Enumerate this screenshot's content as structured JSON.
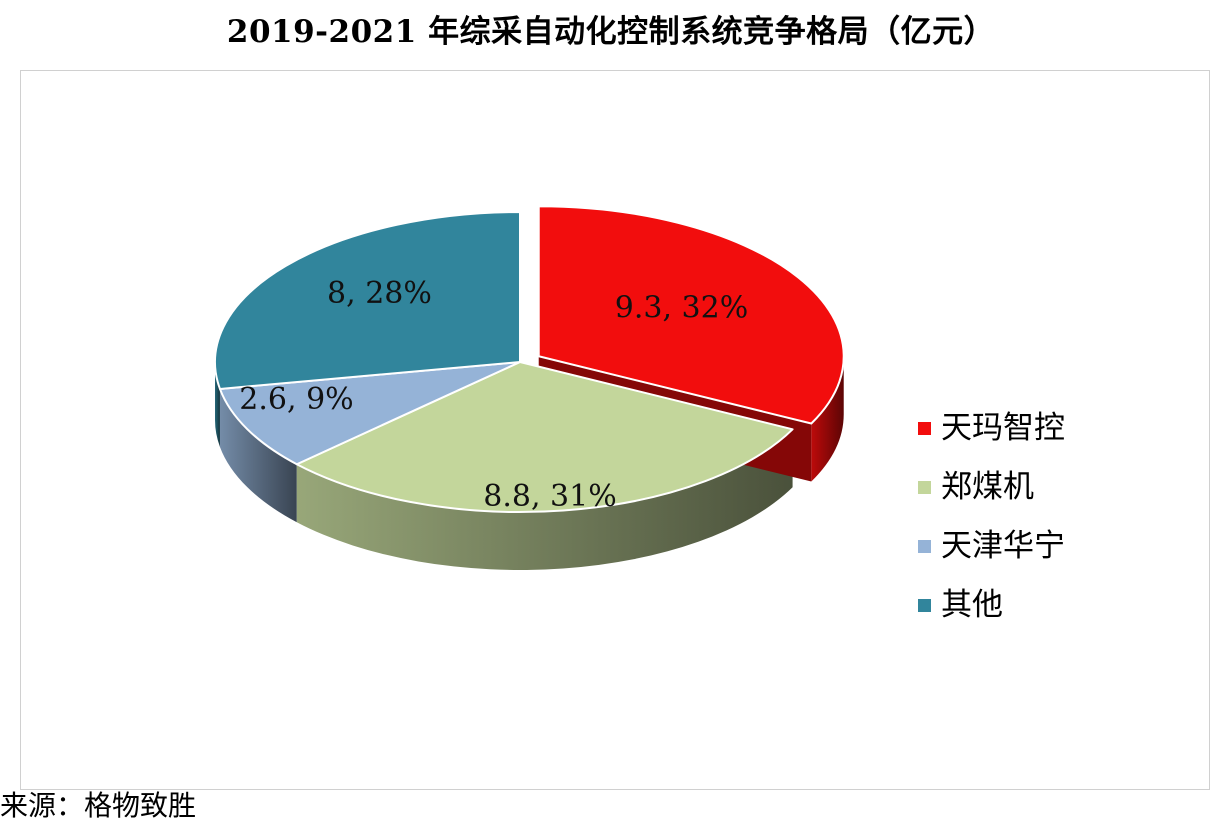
{
  "title": "2019-2021 年综采自动化控制系统竞争格局（亿元）",
  "source": "来源：格物致胜",
  "chart_data": {
    "type": "pie",
    "title": "2019-2021 年综采自动化控制系统竞争格局（亿元）",
    "unit": "亿元",
    "legend_position": "right",
    "labels": [
      "天玛智控",
      "郑煤机",
      "天津华宁",
      "其他"
    ],
    "values": [
      9.3,
      8.8,
      2.6,
      8
    ],
    "percentages": [
      32,
      31,
      9,
      28
    ],
    "data_labels": [
      "9.3, 32%",
      "8.8, 31%",
      "2.6, 9%",
      "8, 28%"
    ],
    "colors": [
      "#f20d0d",
      "#c3d69b",
      "#95b3d7",
      "#31859c"
    ],
    "exploded": [
      "天玛智控"
    ]
  },
  "legend": [
    {
      "label": "天玛智控",
      "color": "#f20d0d"
    },
    {
      "label": "郑煤机",
      "color": "#c3d69b"
    },
    {
      "label": "天津华宁",
      "color": "#95b3d7"
    },
    {
      "label": "其他",
      "color": "#31859c"
    }
  ]
}
